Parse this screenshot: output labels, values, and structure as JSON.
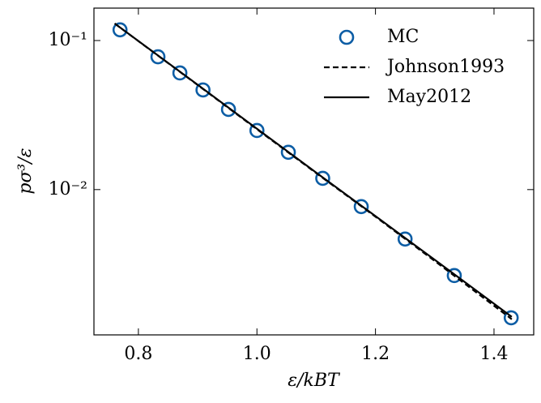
{
  "chart_data": {
    "type": "scatter-line",
    "xlabel": "ε/kBT",
    "ylabel": "pσ³/ε",
    "xlim": [
      0.725,
      1.467
    ],
    "ylim": [
      0.00106,
      0.165
    ],
    "log_y": true,
    "xticks": [
      {
        "value": 0.8,
        "label": "0.8"
      },
      {
        "value": 1.0,
        "label": "1.0"
      },
      {
        "value": 1.2,
        "label": "1.2"
      },
      {
        "value": 1.4,
        "label": "1.4"
      }
    ],
    "yticks": [
      {
        "value": 0.01,
        "label": "10⁻²"
      },
      {
        "value": 0.1,
        "label": "10⁻¹"
      }
    ],
    "legend": "upper right",
    "series": [
      {
        "name": "MC",
        "kind": "scatter",
        "color": "#0C5DA5",
        "x": [
          0.769,
          0.833,
          0.87,
          0.909,
          0.952,
          1.0,
          1.053,
          1.111,
          1.176,
          1.25,
          1.333,
          1.429
        ],
        "values": [
          0.118,
          0.0778,
          0.0606,
          0.0466,
          0.0345,
          0.0249,
          0.0178,
          0.0119,
          0.00769,
          0.00466,
          0.00265,
          0.00138
        ]
      },
      {
        "name": "Johnson1993",
        "kind": "dashed",
        "color": "#000000",
        "x": [
          0.76,
          0.9,
          1.0,
          1.1,
          1.2,
          1.3,
          1.43
        ],
        "values": [
          0.13,
          0.0503,
          0.0254,
          0.0129,
          0.00658,
          0.00332,
          0.00135
        ]
      },
      {
        "name": "May2012",
        "kind": "solid",
        "color": "#000000",
        "x": [
          0.76,
          0.9,
          1.0,
          1.1,
          1.2,
          1.3,
          1.43
        ],
        "values": [
          0.13,
          0.0505,
          0.0256,
          0.013,
          0.00664,
          0.00338,
          0.0014
        ]
      }
    ]
  }
}
